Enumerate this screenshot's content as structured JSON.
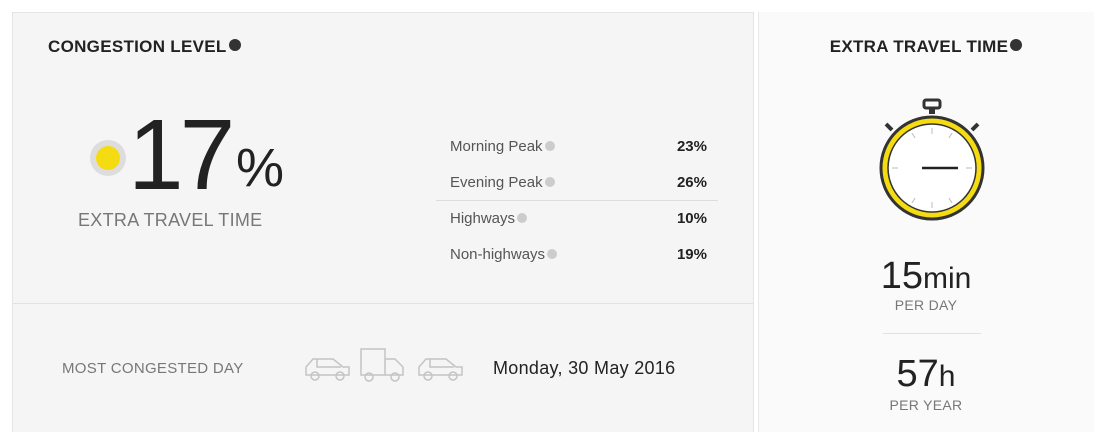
{
  "congestion": {
    "title": "CONGESTION LEVEL",
    "value": "17",
    "unit": "%",
    "caption": "EXTRA TRAVEL TIME",
    "rows": [
      {
        "label": "Morning Peak",
        "value": "23%"
      },
      {
        "label": "Evening Peak",
        "value": "26%"
      },
      {
        "label": "Highways",
        "value": "10%"
      },
      {
        "label": "Non-highways",
        "value": "19%"
      }
    ],
    "most_congested_label": "MOST CONGESTED DAY",
    "most_congested_day": "Monday, 30 May 2016"
  },
  "extra_time": {
    "title": "EXTRA TRAVEL TIME",
    "per_day": {
      "value": "15",
      "unit": "min",
      "label": "PER DAY"
    },
    "per_year": {
      "value": "57",
      "unit": "h",
      "label": "PER YEAR"
    }
  }
}
